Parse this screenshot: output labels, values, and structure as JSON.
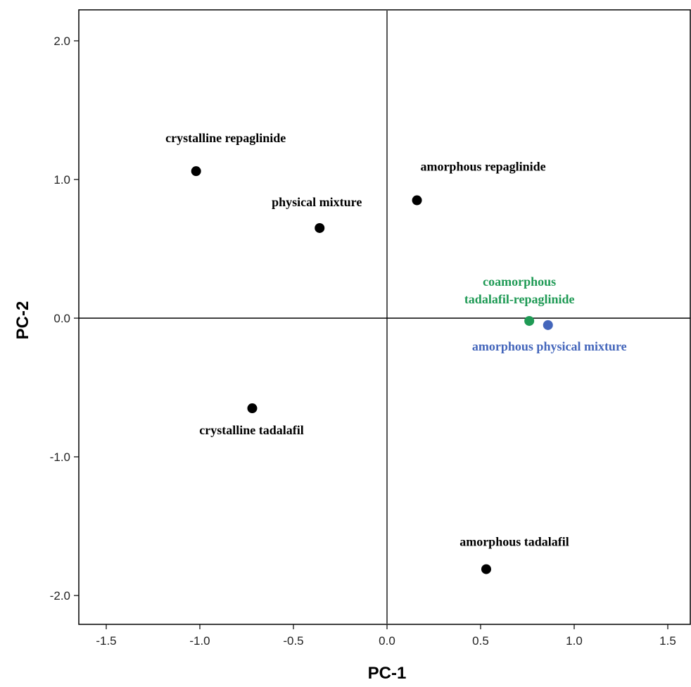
{
  "chart_data": {
    "type": "scatter",
    "title": "",
    "xlabel": "PC-1",
    "ylabel": "PC-2",
    "xlim": [
      -1.65,
      1.65
    ],
    "ylim": [
      -2.2,
      2.2
    ],
    "x_ticks": [
      -1.5,
      -1.0,
      -0.5,
      0.0,
      0.5,
      1.0,
      1.5
    ],
    "x_tick_labels": [
      "-1.5",
      "-1.0",
      "-0.5",
      "0.0",
      "0.5",
      "1.0",
      "1.5"
    ],
    "y_ticks": [
      2.0,
      1.0,
      0.0,
      -1.0,
      -2.0
    ],
    "y_tick_labels": [
      "2.0",
      "1.0",
      "0.0",
      "-1.0",
      "-2.0"
    ],
    "grid": false,
    "reference_lines": {
      "x": 0,
      "y": 0
    },
    "points": [
      {
        "label": "crystalline repaglinide",
        "x": -1.02,
        "y": 1.06,
        "color": "#000000",
        "label_position": "above"
      },
      {
        "label": "physical mixture",
        "x": -0.36,
        "y": 0.65,
        "color": "#000000",
        "label_position": "above"
      },
      {
        "label": "amorphous repaglinide",
        "x": 0.16,
        "y": 0.85,
        "color": "#000000",
        "label_position": "above"
      },
      {
        "label": "crystalline tadalafil",
        "x": -0.72,
        "y": -0.65,
        "color": "#000000",
        "label_position": "below"
      },
      {
        "label": "amorphous tadalafil",
        "x": 0.53,
        "y": -1.81,
        "color": "#000000",
        "label_position": "above"
      },
      {
        "label": "coamorphous\ntadalafil-repaglinide",
        "x": 0.76,
        "y": -0.02,
        "color": "#1f9a55",
        "label_position": "above"
      },
      {
        "label": "amorphous  physical mixture",
        "x": 0.86,
        "y": -0.05,
        "color": "#4466bb",
        "label_position": "below"
      }
    ]
  }
}
